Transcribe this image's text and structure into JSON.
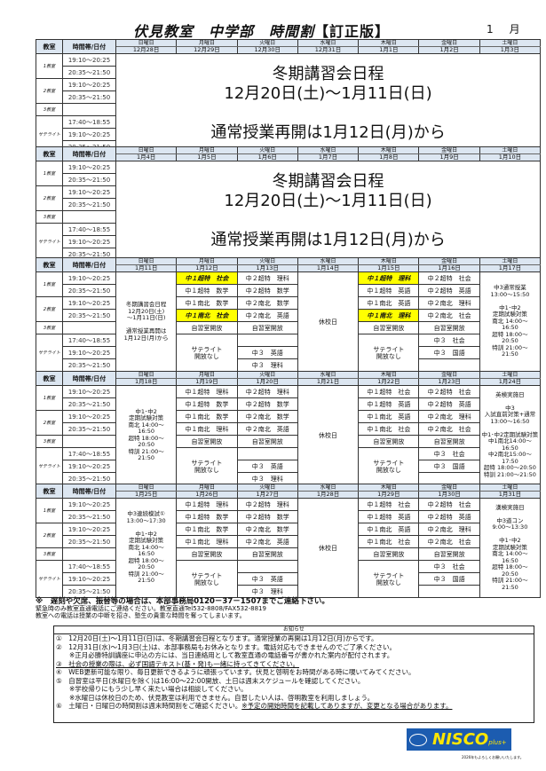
{
  "title": {
    "main": "伏見教室　中学部　時間割",
    "version": "【訂正版】",
    "month_value": "1",
    "month_unit": "月"
  },
  "colors": {
    "header_bg": "#dce6f1",
    "highlight": "#ffff00",
    "logo_bg": "#1c5cb0",
    "logo_text": "#ffe600"
  },
  "headers": {
    "room": "教室",
    "time": "時間帯/日付"
  },
  "days_of_week": [
    "日曜日",
    "月曜日",
    "火曜日",
    "水曜日",
    "木曜日",
    "金曜日",
    "土曜日"
  ],
  "rooms": [
    "1教室",
    "2教室",
    "3教室",
    "サテライト"
  ],
  "times": [
    "19:10～20:25",
    "20:35～21:50",
    "19:10～20:25",
    "20:35～21:50",
    "",
    "17:40～18:55",
    "19:10～20:25",
    "20:35～21:50"
  ],
  "weeks": [
    {
      "dates": [
        "12月28日",
        "12月29日",
        "12月30日",
        "12月31日",
        "1月1日",
        "1月2日",
        "1月3日"
      ],
      "banner": "冬期講習会日程\n12月20日(土)～1月11日(日)\n\n通常授業再開は1月12日(月)から"
    },
    {
      "dates": [
        "1月4日",
        "1月5日",
        "1月6日",
        "1月7日",
        "1月8日",
        "1月9日",
        "1月10日"
      ],
      "banner": "冬期講習会日程\n12月20日(土)～1月11日(日)\n\n通常授業再開は1月12日(月)から"
    },
    {
      "dates": [
        "1月11日",
        "1月12日",
        "1月13日",
        "1月14日",
        "1月15日",
        "1月16日",
        "1月17日"
      ],
      "sun": "冬期講習会日程\n12月20日(土)\n～1月11日(日)\n\n通常授業再開は\n1月12日(月)から",
      "mon": [
        {
          "t": "中１超特　社会",
          "hl": true
        },
        {
          "t": "中１超特　数学"
        },
        {
          "t": "中１南北　数学"
        },
        {
          "t": "中１南北　社会",
          "hl": true
        }
      ],
      "tue": [
        {
          "t": "中２超特　理科"
        },
        {
          "t": "中２超特　数学"
        },
        {
          "t": "中２南北　数学"
        },
        {
          "t": "中２南北　英語"
        }
      ],
      "thu": [
        {
          "t": "中１超特　理科",
          "hl": true
        },
        {
          "t": "中１超特　英語"
        },
        {
          "t": "中１南北　英語"
        },
        {
          "t": "中１南北　理科",
          "hl": true
        }
      ],
      "fri": [
        {
          "t": "中２超特　社会"
        },
        {
          "t": "中２超特　英語"
        },
        {
          "t": "中２南北　理科"
        },
        {
          "t": "中２南北　社会"
        }
      ],
      "sat": "中3通常授業\n13:00～15:50\n\n中1･中2\n定期試験対策\n南北 14:00～\n16:50\n超特 18:00～\n20:50\n特訓 21:00～\n21:50"
    },
    {
      "dates": [
        "1月18日",
        "1月19日",
        "1月20日",
        "1月21日",
        "1月22日",
        "1月23日",
        "1月24日"
      ],
      "sun": "中1･中2\n定期試験対策\n南北 14:00～\n16:50\n超特 18:00～\n20:50\n特訓 21:00～\n21:50",
      "mon": [
        {
          "t": "中１超特　理科"
        },
        {
          "t": "中１超特　数学"
        },
        {
          "t": "中１南北　数学"
        },
        {
          "t": "中１南北　理科"
        }
      ],
      "tue": [
        {
          "t": "中２超特　理科"
        },
        {
          "t": "中２超特　数学"
        },
        {
          "t": "中２南北　数学"
        },
        {
          "t": "中２南北　英語"
        }
      ],
      "thu": [
        {
          "t": "中１超特　社会"
        },
        {
          "t": "中１超特　英語"
        },
        {
          "t": "中１南北　英語"
        },
        {
          "t": "中１南北　社会"
        }
      ],
      "fri": [
        {
          "t": "中２超特　社会"
        },
        {
          "t": "中２超特　英語"
        },
        {
          "t": "中２南北　理科"
        },
        {
          "t": "中２南北　社会"
        }
      ],
      "sat": "英検実施日\n\n中3\n入試直前対策+通常\n13:00～16:50\n\n中1･中2定期試験対策\n中1南北14:00～\n16:50\n中2南北15:00～\n17:50\n超特 18:00～20:50\n特訓 21:00～21:50"
    },
    {
      "dates": [
        "1月25日",
        "1月26日",
        "1月27日",
        "1月28日",
        "1月29日",
        "1月30日",
        "1月31日"
      ],
      "sun": "中3連続模試①\n13:00～17:30\n\n中1･中2\n定期試験対策\n南北 14:00～\n16:50\n超特 18:00～\n20:50\n特訓 21:00～\n21:50",
      "mon": [
        {
          "t": "中１超特　理科"
        },
        {
          "t": "中１超特　数学"
        },
        {
          "t": "中１南北　数学"
        },
        {
          "t": "中１南北　理科"
        }
      ],
      "tue": [
        {
          "t": "中２超特　理科"
        },
        {
          "t": "中２超特　数学"
        },
        {
          "t": "中２南北　数学"
        },
        {
          "t": "中２南北　英語"
        }
      ],
      "thu": [
        {
          "t": "中１超特　社会"
        },
        {
          "t": "中１超特　英語"
        },
        {
          "t": "中１南北　英語"
        },
        {
          "t": "中１南北　社会"
        }
      ],
      "fri": [
        {
          "t": "中２超特　社会"
        },
        {
          "t": "中２超特　英語"
        },
        {
          "t": "中２南北　理科"
        },
        {
          "t": "中２南北　社会"
        }
      ],
      "sat": "漢検実施日\n\n中3道コン\n9:00～13:30\n\n中1･中2\n定期試験対策\n南北 14:00～\n16:50\n超特 18:00～\n20:50\n特訓 21:00～\n21:50"
    }
  ],
  "common": {
    "jishu": "自習室開放",
    "satellite_closed": "サテライト\n開放なし",
    "closed_day": "休校日",
    "tue_sat": [
      "",
      "中３　英語",
      "中３　理科"
    ],
    "fri_sat": [
      "中３　社会",
      "中３　国語",
      ""
    ]
  },
  "warnings": [
    "※　遅刻や欠席、振替等の場合は、本部事務局0120－37－1507までご連絡下さい。",
    "緊急時のみ教室直通電話にご連絡ください。教室直通Tel532-8808/FAX532-8819",
    "教室への電話は授業の中断を招き、塾生の貴重な時間を奪ってしまいます。"
  ],
  "notice": {
    "title": "お知らせ",
    "lines": [
      {
        "t": "①　12月20日(土)～1月11日(日)は、冬期講習会日程となります。通常授業の再開は1月12日(月)からです。"
      },
      {
        "t": "②　12月31日(水)～1月3日(土)は、本部事務局もお休みとなります。電話対応もできませんのでご了承ください。"
      },
      {
        "t": "　　※正月必勝特訓講座に申込の方には、当日連絡用として教室直通の電話番号が書かれた案内が配付されます。"
      },
      {
        "t": "③　社会の授業の際は、必ず国語テキスト(基・発)も一緒に持ってきてください。",
        "ul": true
      },
      {
        "t": "④　WEB更新可能な限り、毎日更新できるように頑張っています。伏見と啓明をお時間がある時に覗いてみてください。"
      },
      {
        "t": "⑤　自習室は平日(水曜日を除く)は16:00～22:00開放、土日は週末スケジュールを確認してください。"
      },
      {
        "t": "　　※学校帰りにもう少し早く来たい場合は相談してください。"
      },
      {
        "t": "　　※水曜日は休校日のため、伏見教室は利用できません。自習したい人は、啓明教室を利用しましょう。"
      },
      {
        "t": "⑥　土曜日・日曜日の時間割は週末時間割をご確認ください。",
        "ul_tail": "※予定の開始時間を記載してありますが、変更となる場合があります。"
      }
    ]
  },
  "logo": {
    "text": "NISCO",
    "plus": "plus+",
    "small": "NISCO"
  },
  "footnote": "2026年もよろしくお願いいたします。"
}
